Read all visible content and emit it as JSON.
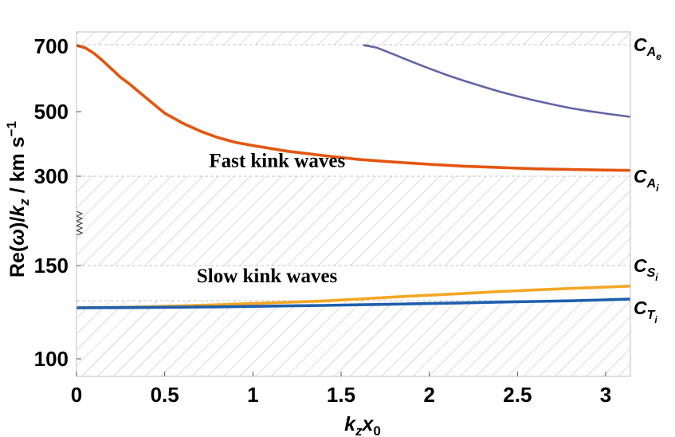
{
  "chart_data": {
    "type": "line",
    "title": "",
    "xlabel": "kzx0",
    "ylabel": "Re(ω)/kz / km s-1",
    "xlim": [
      0,
      3.14
    ],
    "x_ticks": [
      "0",
      "0.5",
      "1",
      "1.5",
      "2",
      "2.5",
      "3"
    ],
    "y_ticks": [
      "100",
      "150",
      "300",
      "500",
      "700"
    ],
    "y_scale": "broken",
    "grid": false,
    "series": [
      {
        "color": "#e3560f",
        "x": [
          0,
          0.05,
          0.1,
          0.15,
          0.2,
          0.25,
          0.3,
          0.4,
          0.5,
          0.6,
          0.7,
          0.8,
          0.9,
          1.0,
          1.2,
          1.4,
          1.6,
          1.8,
          2.0,
          2.2,
          2.4,
          2.6,
          2.8,
          3.0,
          3.14
        ],
        "y": [
          705,
          695,
          678,
          655,
          630,
          605,
          585,
          540,
          495,
          465,
          440,
          420,
          405,
          395,
          377,
          364,
          352,
          344,
          337,
          331,
          327,
          323,
          321,
          319,
          318
        ]
      },
      {
        "color": "#6264a7",
        "x": [
          1.63,
          1.7,
          1.8,
          1.9,
          2.0,
          2.1,
          2.2,
          2.3,
          2.4,
          2.5,
          2.6,
          2.7,
          2.8,
          2.9,
          3.0,
          3.14
        ],
        "y": [
          706,
          696,
          675,
          653,
          632,
          612,
          594,
          577,
          561,
          547,
          534,
          522,
          511,
          502,
          494,
          484
        ]
      },
      {
        "color": "#f5a623",
        "x": [
          0,
          0.2,
          0.4,
          0.6,
          0.8,
          1.0,
          1.2,
          1.4,
          1.6,
          1.8,
          2.0,
          2.2,
          2.4,
          2.6,
          2.8,
          3.0,
          3.14
        ],
        "y": [
          132.0,
          132.2,
          132.6,
          133.2,
          133.9,
          134.7,
          135.5,
          136.3,
          137.1,
          137.9,
          138.6,
          139.3,
          140.0,
          140.6,
          141.2,
          141.7,
          142.1
        ]
      },
      {
        "color": "#1f5fae",
        "x": [
          0,
          0.2,
          0.4,
          0.6,
          0.8,
          1.0,
          1.2,
          1.4,
          1.6,
          1.8,
          2.0,
          2.2,
          2.4,
          2.6,
          2.8,
          3.0,
          3.14
        ],
        "y": [
          132.0,
          132.1,
          132.2,
          132.4,
          132.6,
          132.9,
          133.2,
          133.5,
          133.9,
          134.3,
          134.7,
          135.1,
          135.6,
          136.0,
          136.4,
          136.8,
          137.1
        ]
      }
    ],
    "reference_lines": [
      {
        "y": 709
      },
      {
        "y": 300
      },
      {
        "y": 150
      },
      {
        "y": 136.5
      }
    ],
    "speed_labels": [
      {
        "main": "C",
        "sub": "A",
        "subsub": "e",
        "y": 709
      },
      {
        "main": "C",
        "sub": "A",
        "subsub": "i",
        "y": 300
      },
      {
        "main": "C",
        "sub": "S",
        "subsub": "i",
        "y": 150
      },
      {
        "main": "C",
        "sub": "T",
        "subsub": "i",
        "y": 132
      }
    ],
    "annotations": [
      {
        "text": "Fast kink waves",
        "x": 1.0,
        "y": 328
      },
      {
        "text": "Slow kink waves",
        "x": 0.93,
        "y": 143.5
      }
    ]
  }
}
